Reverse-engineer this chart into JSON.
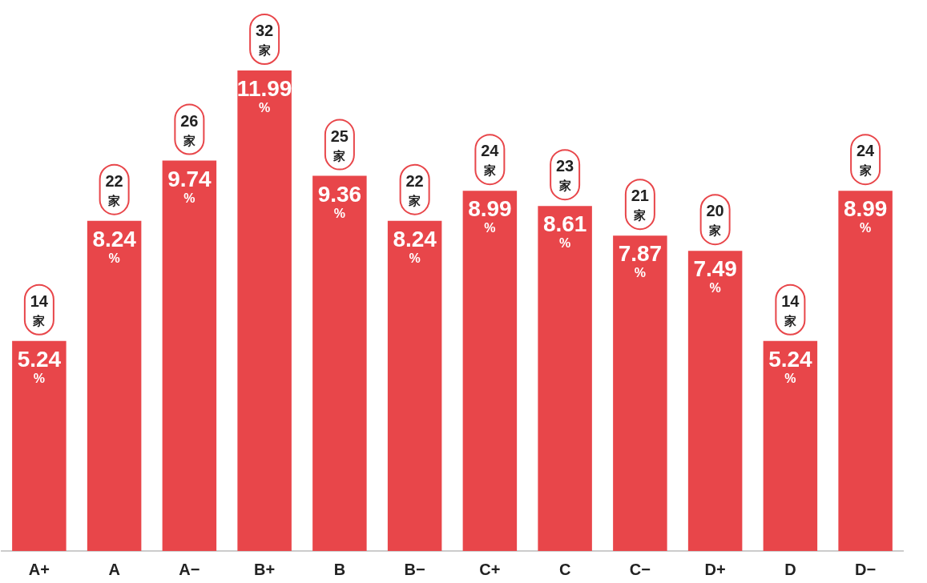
{
  "chart_data": {
    "type": "bar",
    "categories": [
      "A+",
      "A",
      "A−",
      "B+",
      "B",
      "B−",
      "C+",
      "C",
      "C−",
      "D+",
      "D",
      "D−"
    ],
    "values": [
      5.24,
      8.24,
      9.74,
      11.99,
      9.36,
      8.24,
      8.99,
      8.61,
      7.87,
      7.49,
      5.24,
      8.99
    ],
    "value_labels": [
      "5.24%",
      "8.24%",
      "9.74%",
      "11.99%",
      "9.36%",
      "8.24%",
      "8.99%",
      "8.61%",
      "7.87%",
      "7.49%",
      "5.24%",
      "8.99%"
    ],
    "color": "#e8464a",
    "annotations": [
      {
        "text": "14家",
        "x": "A+",
        "y": 5.24
      },
      {
        "text": "22家",
        "x": "A",
        "y": 8.24
      },
      {
        "text": "26家",
        "x": "A−",
        "y": 9.74
      },
      {
        "text": "32家",
        "x": "B+",
        "y": 11.99
      },
      {
        "text": "25家",
        "x": "B",
        "y": 9.36
      },
      {
        "text": "22家",
        "x": "B−",
        "y": 8.24
      },
      {
        "text": "24家",
        "x": "C+",
        "y": 8.99
      },
      {
        "text": "23家",
        "x": "C",
        "y": 8.61
      },
      {
        "text": "21家",
        "x": "C−",
        "y": 7.87
      },
      {
        "text": "20家",
        "x": "D+",
        "y": 7.49
      },
      {
        "text": "14家",
        "x": "D",
        "y": 5.24
      },
      {
        "text": "24家",
        "x": "D−",
        "y": 8.99
      }
    ]
  }
}
